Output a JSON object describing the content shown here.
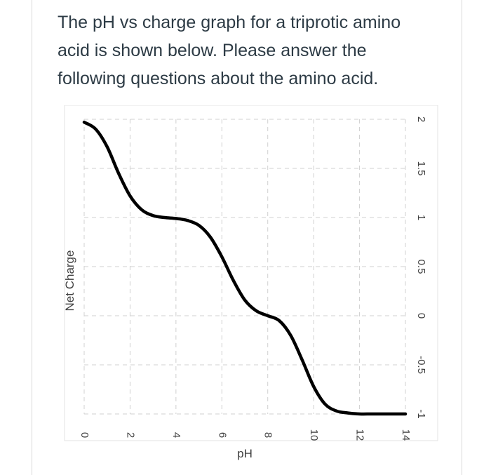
{
  "question": {
    "text": "The pH vs charge graph for a triprotic amino acid is shown below. Please answer the following questions about the amino acid."
  },
  "chart_data": {
    "type": "line",
    "title": "",
    "xlabel": "pH",
    "ylabel": "Net Charge",
    "xlim": [
      0,
      14
    ],
    "ylim": [
      -1,
      2
    ],
    "x_ticks": [
      0,
      2,
      4,
      6,
      8,
      10,
      12,
      14
    ],
    "y_ticks": [
      2,
      1.5,
      1,
      0.5,
      0,
      -0.5,
      -1
    ],
    "y_tick_labels": [
      "2",
      "1.5",
      "1",
      "0.5",
      "0",
      "-0.5",
      "-1"
    ],
    "y_axis_position": "right",
    "y_tick_label_rotation": "vertical",
    "grid": true,
    "grid_style": "dashed",
    "line_color": "#000000",
    "series": [
      {
        "x": [
          0,
          0.5,
          1,
          1.5,
          2,
          2.5,
          3,
          3.5,
          4,
          4.5,
          5,
          5.5,
          6,
          6.5,
          7,
          7.5,
          8,
          8.5,
          9,
          9.5,
          10,
          10.5,
          11,
          11.5,
          12,
          12.5,
          13,
          14
        ],
        "y": [
          1.97,
          1.9,
          1.72,
          1.45,
          1.22,
          1.08,
          1.02,
          1.0,
          0.99,
          0.97,
          0.92,
          0.8,
          0.6,
          0.36,
          0.16,
          0.05,
          0.0,
          -0.05,
          -0.2,
          -0.45,
          -0.72,
          -0.9,
          -0.97,
          -0.99,
          -1.0,
          -1.0,
          -1.0,
          -1.0
        ]
      }
    ]
  }
}
